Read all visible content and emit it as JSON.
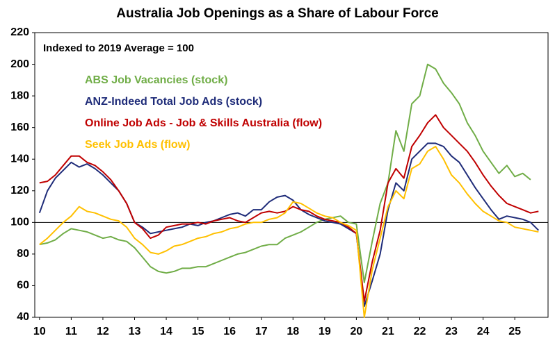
{
  "chart_data": {
    "type": "line",
    "title": "Australia Job Openings as a Share of Labour Force",
    "annotation": "Indexed to 2019 Average = 100",
    "reference_line": 100,
    "xlim": [
      9.85,
      26.05
    ],
    "xticks": [
      10,
      11,
      12,
      13,
      14,
      15,
      16,
      17,
      18,
      19,
      20,
      21,
      22,
      23,
      24,
      25
    ],
    "ylim": [
      40,
      220
    ],
    "yticks": [
      40,
      60,
      80,
      100,
      120,
      140,
      160,
      180,
      200,
      220
    ],
    "x": [
      10,
      10.25,
      10.5,
      10.75,
      11,
      11.25,
      11.5,
      11.75,
      12,
      12.25,
      12.5,
      12.75,
      13,
      13.25,
      13.5,
      13.75,
      14,
      14.25,
      14.5,
      14.75,
      15,
      15.25,
      15.5,
      15.75,
      16,
      16.25,
      16.5,
      16.75,
      17,
      17.25,
      17.5,
      17.75,
      18,
      18.25,
      18.5,
      18.75,
      19,
      19.25,
      19.5,
      19.75,
      20,
      20.25,
      20.5,
      20.75,
      21,
      21.25,
      21.5,
      21.75,
      22,
      22.25,
      22.5,
      22.75,
      23,
      23.25,
      23.5,
      23.75,
      24,
      24.25,
      24.5,
      24.75,
      25,
      25.25,
      25.5,
      25.75
    ],
    "series": [
      {
        "name": "ABS Job Vacancies (stock)",
        "color": "#70ad47",
        "values": [
          86,
          87,
          89,
          93,
          96,
          95,
          94,
          92,
          90,
          91,
          89,
          88,
          84,
          78,
          72,
          69,
          68,
          69,
          71,
          71,
          72,
          72,
          74,
          76,
          78,
          80,
          81,
          83,
          85,
          86,
          86,
          90,
          92,
          94,
          97,
          100,
          102,
          103,
          104,
          100,
          99,
          62,
          88,
          112,
          125,
          158,
          145,
          175,
          180,
          200,
          197,
          188,
          182,
          175,
          163,
          155,
          145,
          138,
          131,
          136,
          129,
          131,
          127,
          null
        ]
      },
      {
        "name": "ANZ-Indeed Total Job Ads (stock)",
        "color": "#1f2c79",
        "values": [
          106,
          120,
          128,
          133,
          138,
          135,
          137,
          134,
          130,
          125,
          120,
          112,
          100,
          97,
          93,
          94,
          95,
          96,
          97,
          99,
          98,
          100,
          101,
          103,
          105,
          106,
          104,
          108,
          108,
          113,
          116,
          117,
          114,
          108,
          105,
          103,
          101,
          100,
          99,
          96,
          93,
          47,
          63,
          80,
          108,
          125,
          120,
          140,
          145,
          150,
          150,
          148,
          142,
          138,
          130,
          122,
          115,
          108,
          102,
          104,
          103,
          102,
          100,
          95
        ]
      },
      {
        "name": "Online Job Ads - Job & Skills Australia (flow)",
        "color": "#c00000",
        "values": [
          125,
          126,
          130,
          136,
          142,
          142,
          138,
          136,
          132,
          127,
          120,
          112,
          100,
          96,
          90,
          92,
          97,
          98,
          99,
          99,
          100,
          99,
          101,
          102,
          103,
          101,
          100,
          103,
          106,
          107,
          106,
          107,
          110,
          108,
          107,
          104,
          102,
          101,
          100,
          97,
          93,
          50,
          75,
          95,
          125,
          134,
          128,
          148,
          155,
          163,
          168,
          160,
          155,
          150,
          145,
          138,
          130,
          123,
          117,
          112,
          110,
          108,
          106,
          107
        ]
      },
      {
        "name": "Seek Job Ads (flow)",
        "color": "#ffc000",
        "values": [
          86,
          90,
          95,
          100,
          104,
          110,
          107,
          106,
          104,
          102,
          101,
          97,
          90,
          86,
          81,
          80,
          82,
          85,
          86,
          88,
          90,
          91,
          93,
          94,
          96,
          97,
          99,
          100,
          100,
          102,
          103,
          106,
          113,
          112,
          109,
          106,
          104,
          103,
          100,
          98,
          95,
          40,
          70,
          90,
          110,
          120,
          115,
          134,
          137,
          145,
          148,
          140,
          130,
          125,
          118,
          112,
          107,
          104,
          101,
          100,
          97,
          96,
          95,
          94
        ]
      }
    ]
  }
}
